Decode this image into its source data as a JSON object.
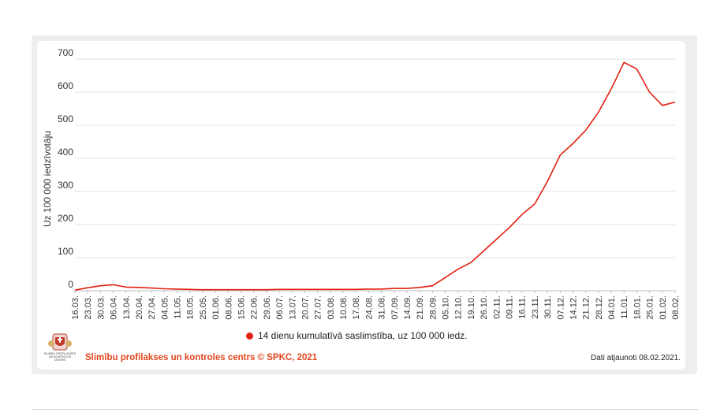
{
  "chart_data": {
    "type": "line",
    "ylabel": "Uz 100 000 iedzīvotāju",
    "xlabel": "",
    "ylim": [
      0,
      700
    ],
    "yticks": [
      0,
      100,
      200,
      300,
      400,
      500,
      600,
      700
    ],
    "grid": true,
    "legend_position": "bottom",
    "x_tick_labels": [
      "16.03.",
      "23.03.",
      "30.03.",
      "06.04.",
      "13.04.",
      "20.04.",
      "27.04.",
      "04.05.",
      "11.05.",
      "18.05.",
      "25.05.",
      "01.06.",
      "08.06.",
      "15.06.",
      "22.06.",
      "29.06.",
      "06.07.",
      "13.07.",
      "20.07.",
      "27.07.",
      "03.08.",
      "10.08.",
      "17.08.",
      "24.08.",
      "31.08.",
      "07.09.",
      "14.09.",
      "21.09.",
      "28.09.",
      "05.10.",
      "12.10.",
      "19.10.",
      "26.10.",
      "02.11.",
      "09.11.",
      "16.11.",
      "23.11.",
      "30.11.",
      "07.12.",
      "14.12.",
      "21.12.",
      "28.12.",
      "04.01.",
      "11.01.",
      "18.01.",
      "25.01.",
      "01.02.",
      "08.02."
    ],
    "series": [
      {
        "name": "14 dienu kumulatīvā saslimstība, uz 100 000 iedz.",
        "color": "#e02010",
        "values": [
          2,
          9,
          15,
          18,
          11,
          10,
          8,
          6,
          5,
          4,
          3,
          3,
          3,
          3,
          3,
          3,
          4,
          4,
          4,
          4,
          4,
          4,
          4,
          5,
          5,
          7,
          7,
          10,
          15,
          40,
          65,
          85,
          120,
          155,
          190,
          230,
          262,
          330,
          410,
          445,
          485,
          540,
          610,
          690,
          670,
          600,
          560,
          570
        ]
      }
    ]
  },
  "legend": {
    "label": "14 dienu kumulatīvā saslimstība, uz 100 000 iedz.",
    "color": "#e02010"
  },
  "footer": {
    "source": "Slimību profilakses un kontroles centrs © SPKC, 2021",
    "updated": "Dati atjaunoti 08.02.2021."
  },
  "logo": {
    "lines": [
      "SLIMĪBU PROFILAKSES",
      "UN KONTROLES",
      "CENTRS"
    ]
  }
}
